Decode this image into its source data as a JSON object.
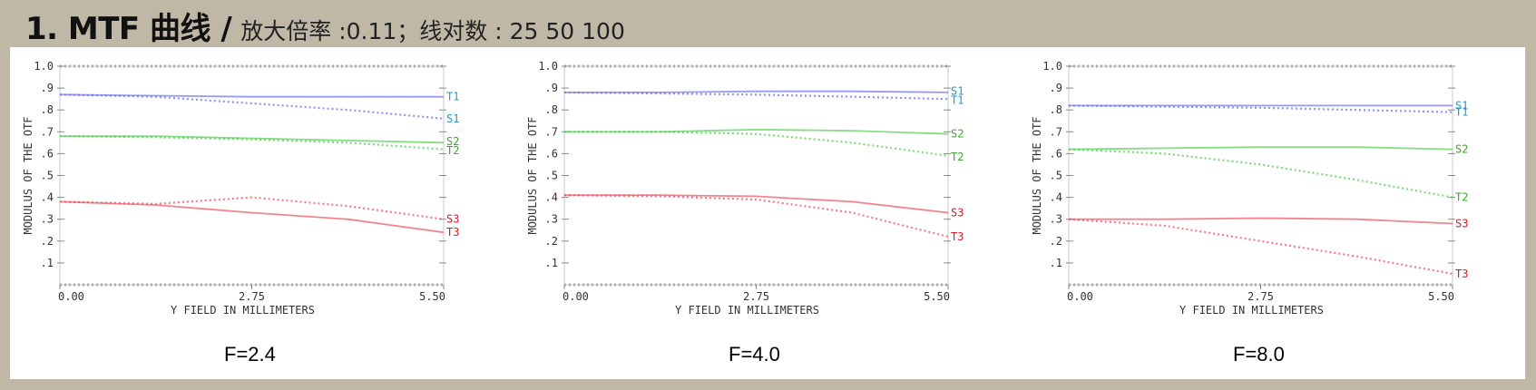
{
  "header": {
    "title": "1. MTF 曲线 /",
    "subtitle": "放大倍率 :0.11；线对数 : 25 50 100"
  },
  "colors": {
    "blue": "#6b72ea",
    "blue_label": "#1b9bd8",
    "green": "#4fcf4f",
    "green_label": "#3aa82a",
    "red": "#ee5060",
    "red_label": "#d81828",
    "axis": "#888888"
  },
  "chart_data": [
    {
      "type": "line",
      "title": "F=2.4",
      "xlabel": "Y FIELD IN MILLIMETERS",
      "ylabel": "MODULUS OF THE OTF",
      "xlim": [
        0,
        5.5
      ],
      "ylim": [
        0,
        1.0
      ],
      "x_ticks": [
        "0.00",
        "2.75",
        "5.50"
      ],
      "y_ticks": [
        ".1",
        ".2",
        ".3",
        ".4",
        ".5",
        ".6",
        ".7",
        ".8",
        ".9",
        "1.0"
      ],
      "series": [
        {
          "name": "T1",
          "color": "blue",
          "style": "solid",
          "x": [
            0,
            1.375,
            2.75,
            4.125,
            5.5
          ],
          "y": [
            0.87,
            0.865,
            0.86,
            0.86,
            0.86
          ]
        },
        {
          "name": "S1",
          "color": "blue",
          "style": "dotted",
          "x": [
            0,
            1.375,
            2.75,
            4.125,
            5.5
          ],
          "y": [
            0.87,
            0.86,
            0.83,
            0.8,
            0.76
          ]
        },
        {
          "name": "S2",
          "color": "green",
          "style": "solid",
          "x": [
            0,
            1.375,
            2.75,
            4.125,
            5.5
          ],
          "y": [
            0.68,
            0.68,
            0.67,
            0.66,
            0.65
          ]
        },
        {
          "name": "T2",
          "color": "green",
          "style": "dotted",
          "x": [
            0,
            1.375,
            2.75,
            4.125,
            5.5
          ],
          "y": [
            0.68,
            0.675,
            0.665,
            0.65,
            0.62
          ]
        },
        {
          "name": "S3",
          "color": "red",
          "style": "dotted",
          "x": [
            0,
            1.375,
            2.75,
            4.125,
            5.5
          ],
          "y": [
            0.38,
            0.37,
            0.4,
            0.36,
            0.3
          ]
        },
        {
          "name": "T3",
          "color": "red",
          "style": "solid",
          "x": [
            0,
            1.375,
            2.75,
            4.125,
            5.5
          ],
          "y": [
            0.38,
            0.365,
            0.33,
            0.3,
            0.24
          ]
        }
      ],
      "labels": [
        {
          "text": "T1",
          "color": "blue",
          "y": 0.86
        },
        {
          "text": "S1",
          "color": "blue",
          "y": 0.76
        },
        {
          "text": "S2",
          "color": "green",
          "y": 0.655
        },
        {
          "text": "T2",
          "color": "green",
          "y": 0.615
        },
        {
          "text": "S3",
          "color": "red",
          "y": 0.3
        },
        {
          "text": "T3",
          "color": "red",
          "y": 0.24
        }
      ]
    },
    {
      "type": "line",
      "title": "F=4.0",
      "xlabel": "Y FIELD IN MILLIMETERS",
      "ylabel": "MODULUS OF THE OTF",
      "xlim": [
        0,
        5.5
      ],
      "ylim": [
        0,
        1.0
      ],
      "x_ticks": [
        "0.00",
        "2.75",
        "5.50"
      ],
      "y_ticks": [
        ".1",
        ".2",
        ".3",
        ".4",
        ".5",
        ".6",
        ".7",
        ".8",
        ".9",
        "1.0"
      ],
      "series": [
        {
          "name": "S1",
          "color": "blue",
          "style": "solid",
          "x": [
            0,
            1.375,
            2.75,
            4.125,
            5.5
          ],
          "y": [
            0.88,
            0.88,
            0.885,
            0.885,
            0.88
          ]
        },
        {
          "name": "T1",
          "color": "blue",
          "style": "dotted",
          "x": [
            0,
            1.375,
            2.75,
            4.125,
            5.5
          ],
          "y": [
            0.88,
            0.875,
            0.87,
            0.86,
            0.85
          ]
        },
        {
          "name": "S2",
          "color": "green",
          "style": "solid",
          "x": [
            0,
            1.375,
            2.75,
            4.125,
            5.5
          ],
          "y": [
            0.7,
            0.7,
            0.71,
            0.705,
            0.69
          ]
        },
        {
          "name": "T2",
          "color": "green",
          "style": "dotted",
          "x": [
            0,
            1.375,
            2.75,
            4.125,
            5.5
          ],
          "y": [
            0.7,
            0.7,
            0.69,
            0.65,
            0.59
          ]
        },
        {
          "name": "S3",
          "color": "red",
          "style": "solid",
          "x": [
            0,
            1.375,
            2.75,
            4.125,
            5.5
          ],
          "y": [
            0.41,
            0.41,
            0.405,
            0.38,
            0.33
          ]
        },
        {
          "name": "T3",
          "color": "red",
          "style": "dotted",
          "x": [
            0,
            1.375,
            2.75,
            4.125,
            5.5
          ],
          "y": [
            0.41,
            0.405,
            0.39,
            0.33,
            0.22
          ]
        }
      ],
      "labels": [
        {
          "text": "S1",
          "color": "blue",
          "y": 0.885
        },
        {
          "text": "T1",
          "color": "blue",
          "y": 0.845
        },
        {
          "text": "S2",
          "color": "green",
          "y": 0.69
        },
        {
          "text": "T2",
          "color": "green",
          "y": 0.585
        },
        {
          "text": "S3",
          "color": "red",
          "y": 0.33
        },
        {
          "text": "T3",
          "color": "red",
          "y": 0.22
        }
      ]
    },
    {
      "type": "line",
      "title": "F=8.0",
      "xlabel": "Y FIELD IN MILLIMETERS",
      "ylabel": "MODULUS OF THE OTF",
      "xlim": [
        0,
        5.5
      ],
      "ylim": [
        0,
        1.0
      ],
      "x_ticks": [
        "0.00",
        "2.75",
        "5.50"
      ],
      "y_ticks": [
        ".1",
        ".2",
        ".3",
        ".4",
        ".5",
        ".6",
        ".7",
        ".8",
        ".9",
        "1.0"
      ],
      "series": [
        {
          "name": "S1",
          "color": "blue",
          "style": "solid",
          "x": [
            0,
            1.375,
            2.75,
            4.125,
            5.5
          ],
          "y": [
            0.82,
            0.82,
            0.82,
            0.82,
            0.82
          ]
        },
        {
          "name": "T1",
          "color": "blue",
          "style": "dotted",
          "x": [
            0,
            1.375,
            2.75,
            4.125,
            5.5
          ],
          "y": [
            0.82,
            0.815,
            0.81,
            0.8,
            0.79
          ]
        },
        {
          "name": "S2",
          "color": "green",
          "style": "solid",
          "x": [
            0,
            1.375,
            2.75,
            4.125,
            5.5
          ],
          "y": [
            0.62,
            0.625,
            0.63,
            0.63,
            0.62
          ]
        },
        {
          "name": "T2",
          "color": "green",
          "style": "dotted",
          "x": [
            0,
            1.375,
            2.75,
            4.125,
            5.5
          ],
          "y": [
            0.62,
            0.6,
            0.55,
            0.48,
            0.4
          ]
        },
        {
          "name": "S3",
          "color": "red",
          "style": "solid",
          "x": [
            0,
            1.375,
            2.75,
            4.125,
            5.5
          ],
          "y": [
            0.3,
            0.3,
            0.305,
            0.3,
            0.28
          ]
        },
        {
          "name": "T3",
          "color": "red",
          "style": "dotted",
          "x": [
            0,
            1.375,
            2.75,
            4.125,
            5.5
          ],
          "y": [
            0.3,
            0.27,
            0.2,
            0.13,
            0.05
          ]
        }
      ],
      "labels": [
        {
          "text": "S1",
          "color": "blue",
          "y": 0.82
        },
        {
          "text": "T1",
          "color": "blue",
          "y": 0.79
        },
        {
          "text": "S2",
          "color": "green",
          "y": 0.62
        },
        {
          "text": "T2",
          "color": "green",
          "y": 0.4
        },
        {
          "text": "S3",
          "color": "red",
          "y": 0.28
        },
        {
          "text": "T3",
          "color": "red",
          "y": 0.05
        }
      ]
    }
  ]
}
